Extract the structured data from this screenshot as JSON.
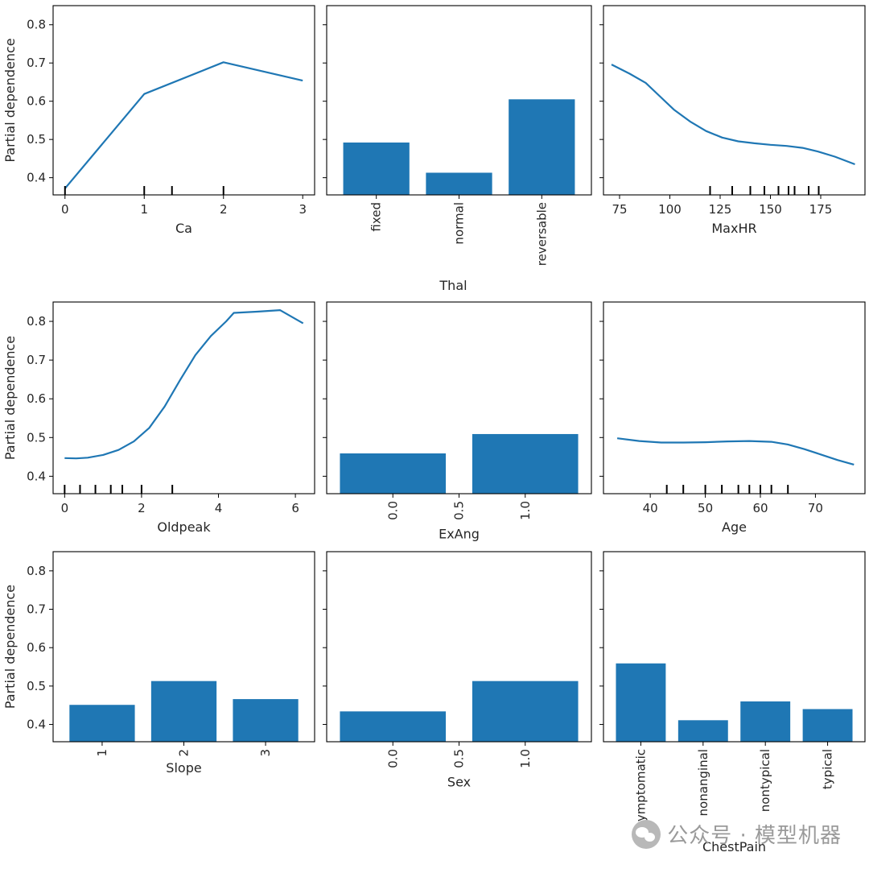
{
  "figure": {
    "ylabel": "Partial dependence",
    "ylim": [
      0.355,
      0.85
    ],
    "yticks": [
      0.4,
      0.5,
      0.6,
      0.7,
      0.8
    ]
  },
  "watermark": {
    "text": "公众号 · 模型机器"
  },
  "chart_data": [
    {
      "id": "ca",
      "type": "line",
      "xlabel": "Ca",
      "show_ylabel": true,
      "xlim": [
        -0.15,
        3.15
      ],
      "xticks": [
        "0",
        "1",
        "2",
        "3"
      ],
      "xtick_values": [
        0,
        1,
        2,
        3
      ],
      "xtick_rotation": 0,
      "x": [
        0,
        1,
        2,
        3
      ],
      "y": [
        0.372,
        0.619,
        0.702,
        0.654
      ],
      "rug": [
        0,
        1,
        1.35,
        2
      ]
    },
    {
      "id": "thal",
      "type": "bar",
      "xlabel": "Thal",
      "show_ylabel": false,
      "categories": [
        "fixed",
        "normal",
        "reversable"
      ],
      "values": [
        0.492,
        0.413,
        0.605
      ],
      "xtick_rotation": -90
    },
    {
      "id": "maxhr",
      "type": "line",
      "xlabel": "MaxHR",
      "show_ylabel": false,
      "xlim": [
        67,
        197
      ],
      "xticks": [
        "75",
        "100",
        "125",
        "150",
        "175"
      ],
      "xtick_values": [
        75,
        100,
        125,
        150,
        175
      ],
      "xtick_rotation": 0,
      "x": [
        71,
        80,
        88,
        95,
        102,
        110,
        118,
        126,
        134,
        142,
        150,
        158,
        166,
        174,
        182,
        192
      ],
      "y": [
        0.696,
        0.672,
        0.648,
        0.613,
        0.578,
        0.547,
        0.522,
        0.505,
        0.495,
        0.49,
        0.486,
        0.483,
        0.478,
        0.468,
        0.455,
        0.435
      ],
      "rug": [
        120,
        131,
        140,
        147,
        154,
        159,
        162,
        169,
        174
      ]
    },
    {
      "id": "oldpeak",
      "type": "line",
      "xlabel": "Oldpeak",
      "show_ylabel": true,
      "xlim": [
        -0.3,
        6.5
      ],
      "xticks": [
        "0",
        "2",
        "4",
        "6"
      ],
      "xtick_values": [
        0,
        2,
        4,
        6
      ],
      "xtick_rotation": 0,
      "x": [
        0,
        0.3,
        0.6,
        1.0,
        1.4,
        1.8,
        2.2,
        2.6,
        3.0,
        3.4,
        3.8,
        4.2,
        4.4,
        5.0,
        5.6,
        6.2
      ],
      "y": [
        0.447,
        0.446,
        0.448,
        0.455,
        0.468,
        0.49,
        0.525,
        0.58,
        0.648,
        0.713,
        0.762,
        0.8,
        0.822,
        0.825,
        0.829,
        0.795
      ],
      "rug": [
        0,
        0.4,
        0.8,
        1.2,
        1.5,
        2.0,
        2.8
      ]
    },
    {
      "id": "exang",
      "type": "bar",
      "xlabel": "ExAng",
      "show_ylabel": false,
      "numeric_x": true,
      "xlim": [
        -0.5,
        1.5
      ],
      "bar_width": 0.8,
      "x": [
        0.0,
        1.0
      ],
      "values": [
        0.459,
        0.509
      ],
      "xticks": [
        "0.0",
        "0.5",
        "1.0"
      ],
      "xtick_values": [
        0.0,
        0.5,
        1.0
      ],
      "xtick_rotation": -90
    },
    {
      "id": "age",
      "type": "line",
      "xlabel": "Age",
      "show_ylabel": false,
      "xlim": [
        31.5,
        79
      ],
      "xticks": [
        "40",
        "50",
        "60",
        "70"
      ],
      "xtick_values": [
        40,
        50,
        60,
        70
      ],
      "xtick_rotation": 0,
      "x": [
        34,
        38,
        42,
        46,
        50,
        54,
        58,
        62,
        65,
        68,
        71,
        74,
        77
      ],
      "y": [
        0.498,
        0.491,
        0.487,
        0.487,
        0.488,
        0.49,
        0.491,
        0.489,
        0.482,
        0.47,
        0.456,
        0.442,
        0.43
      ],
      "rug": [
        43,
        46,
        50,
        53,
        56,
        58,
        60,
        62,
        65
      ]
    },
    {
      "id": "slope",
      "type": "bar",
      "xlabel": "Slope",
      "show_ylabel": true,
      "categories": [
        "1",
        "2",
        "3"
      ],
      "values": [
        0.451,
        0.513,
        0.466
      ],
      "xtick_rotation": -90
    },
    {
      "id": "sex",
      "type": "bar",
      "xlabel": "Sex",
      "show_ylabel": false,
      "numeric_x": true,
      "xlim": [
        -0.5,
        1.5
      ],
      "bar_width": 0.8,
      "x": [
        0.0,
        1.0
      ],
      "values": [
        0.434,
        0.513
      ],
      "xticks": [
        "0.0",
        "0.5",
        "1.0"
      ],
      "xtick_values": [
        0.0,
        0.5,
        1.0
      ],
      "xtick_rotation": -90
    },
    {
      "id": "chestpain",
      "type": "bar",
      "xlabel": "ChestPain",
      "show_ylabel": false,
      "categories": [
        "asymptomatic",
        "nonanginal",
        "nontypical",
        "typical"
      ],
      "values": [
        0.559,
        0.411,
        0.46,
        0.44
      ],
      "xtick_rotation": -90
    }
  ]
}
